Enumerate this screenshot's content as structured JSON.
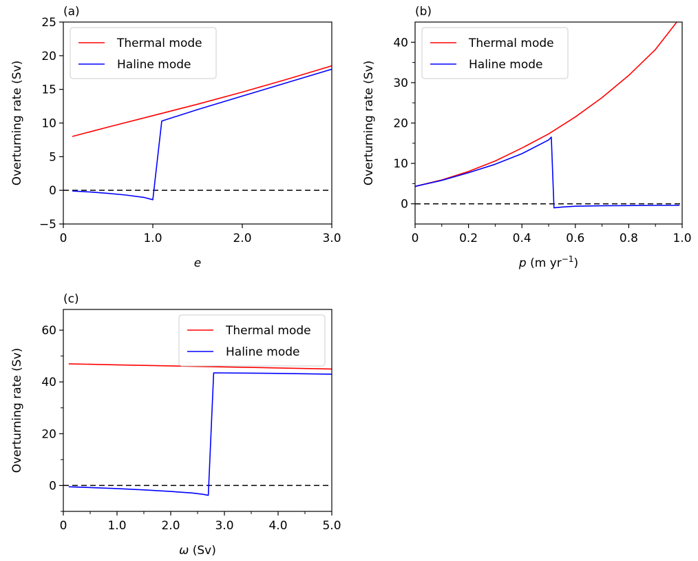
{
  "colors": {
    "thermal": "#ff0000",
    "haline": "#0000ff",
    "zero_line": "#000000"
  },
  "chart_data": [
    {
      "type": "line",
      "panel_label": "(a)",
      "xlabel": "e",
      "ylabel": "Overturning rate (Sv)",
      "xlim": [
        0,
        3.0
      ],
      "ylim": [
        -5,
        25
      ],
      "xticks": [
        0,
        1.0,
        2.0,
        3.0
      ],
      "xtick_labels": [
        "0",
        "1.0",
        "2.0",
        "3.0"
      ],
      "x_minor_ticks": [],
      "yticks": [
        -5,
        0,
        5,
        10,
        15,
        20,
        25
      ],
      "ytick_labels": [
        "−5",
        "0",
        "5",
        "10",
        "15",
        "20",
        "25"
      ],
      "y_minor_ticks": [],
      "legend_position": "top-left",
      "zero_line": true,
      "series": [
        {
          "name": "Thermal mode",
          "x": [
            0.1,
            0.5,
            1.0,
            1.5,
            2.0,
            2.5,
            3.0
          ],
          "values": [
            8.0,
            9.4,
            11.1,
            12.8,
            14.6,
            16.5,
            18.5
          ]
        },
        {
          "name": "Haline mode",
          "x": [
            0.1,
            0.3,
            0.5,
            0.7,
            0.9,
            1.0,
            1.1,
            1.5,
            2.0,
            2.5,
            3.0
          ],
          "values": [
            -0.1,
            -0.25,
            -0.45,
            -0.7,
            -1.05,
            -1.4,
            10.3,
            12.0,
            14.0,
            16.0,
            18.0
          ]
        }
      ]
    },
    {
      "type": "line",
      "panel_label": "(b)",
      "xlabel": "p",
      "xlabel_unit": "(m yr",
      "xlabel_sup": "−1",
      "xlabel_close": ")",
      "ylabel": "Overturning rate (Sv)",
      "xlim": [
        0,
        1.0
      ],
      "ylim": [
        -5,
        45
      ],
      "xticks": [
        0,
        0.2,
        0.4,
        0.6,
        0.8,
        1.0
      ],
      "xtick_labels": [
        "0",
        "0.2",
        "0.4",
        "0.6",
        "0.8",
        "1.0"
      ],
      "x_minor_ticks": [
        0.1,
        0.3,
        0.5,
        0.7,
        0.9
      ],
      "yticks": [
        0,
        10,
        20,
        30,
        40
      ],
      "ytick_labels": [
        "0",
        "10",
        "20",
        "30",
        "40"
      ],
      "y_minor_ticks": [
        5,
        15,
        25,
        35
      ],
      "legend_position": "top-left",
      "zero_line": true,
      "series": [
        {
          "name": "Thermal mode",
          "x": [
            0,
            0.1,
            0.2,
            0.3,
            0.4,
            0.5,
            0.6,
            0.7,
            0.8,
            0.9,
            0.98,
            1.0
          ],
          "values": [
            4.3,
            5.9,
            8.0,
            10.6,
            13.8,
            17.3,
            21.5,
            26.3,
            31.8,
            38.2,
            45.0,
            46.5
          ]
        },
        {
          "name": "Haline mode",
          "x": [
            0,
            0.1,
            0.2,
            0.3,
            0.4,
            0.5,
            0.51,
            0.52,
            0.55,
            0.6,
            0.7,
            0.8,
            0.9,
            0.99
          ],
          "values": [
            4.3,
            5.8,
            7.7,
            9.8,
            12.4,
            15.8,
            16.5,
            -1.0,
            -0.8,
            -0.6,
            -0.5,
            -0.45,
            -0.4,
            -0.4
          ]
        }
      ]
    },
    {
      "type": "line",
      "panel_label": "(c)",
      "xlabel": "ω",
      "xlabel_unit": "(Sv)",
      "ylabel": "Overturning rate (Sv)",
      "xlim": [
        0,
        5.0
      ],
      "ylim": [
        -10,
        68
      ],
      "xticks": [
        0,
        1.0,
        2.0,
        3.0,
        4.0,
        5.0
      ],
      "xtick_labels": [
        "0",
        "1.0",
        "2.0",
        "3.0",
        "4.0",
        "5.0"
      ],
      "x_minor_ticks": [
        0.5,
        1.5,
        2.5,
        3.5,
        4.5
      ],
      "yticks": [
        0,
        20,
        40,
        60
      ],
      "ytick_labels": [
        "0",
        "20",
        "40",
        "60"
      ],
      "y_minor_ticks": [
        -10,
        10,
        30,
        50
      ],
      "legend_position": "top-right",
      "zero_line": true,
      "series": [
        {
          "name": "Thermal mode",
          "x": [
            0.1,
            1.0,
            2.0,
            3.0,
            4.0,
            5.0
          ],
          "values": [
            47.0,
            46.6,
            46.2,
            45.8,
            45.4,
            45.0
          ]
        },
        {
          "name": "Haline mode",
          "x": [
            0.1,
            0.5,
            1.0,
            1.5,
            2.0,
            2.4,
            2.6,
            2.7,
            2.8,
            3.5,
            4.0,
            5.0
          ],
          "values": [
            -0.5,
            -0.8,
            -1.2,
            -1.7,
            -2.3,
            -2.9,
            -3.4,
            -3.8,
            43.5,
            43.4,
            43.3,
            43.0
          ]
        }
      ]
    }
  ]
}
